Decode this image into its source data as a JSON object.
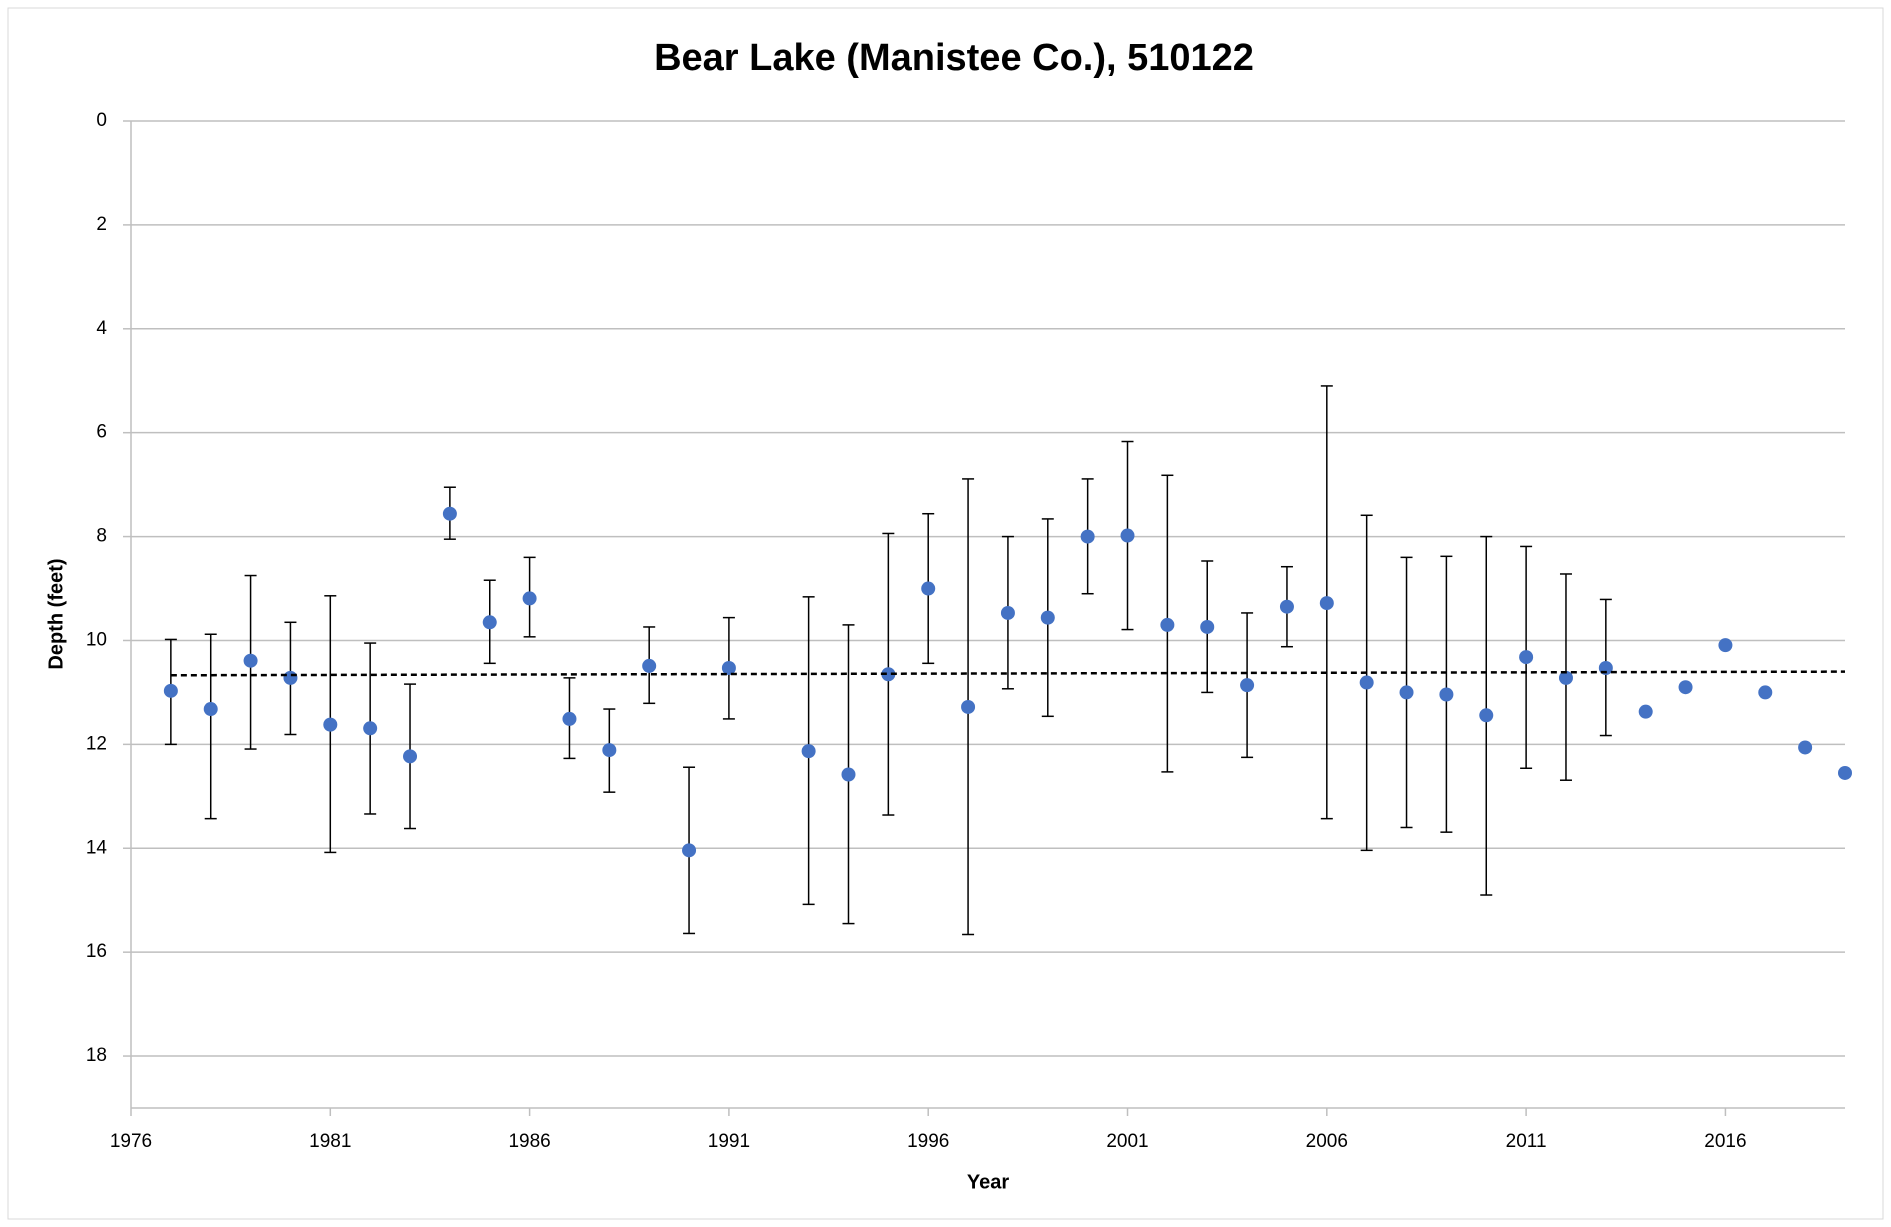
{
  "chart_data": {
    "type": "scatter",
    "title": "Bear Lake (Manistee Co.), 510122",
    "x_label": "Year",
    "y_label": "Depth (feet)",
    "xlim": [
      1976,
      2019
    ],
    "xticks": [
      1976,
      1981,
      1986,
      1991,
      1996,
      2001,
      2006,
      2011,
      2016
    ],
    "ylim": [
      0,
      19
    ],
    "yticks": [
      0,
      2,
      4,
      6,
      8,
      10,
      12,
      14,
      16,
      18
    ],
    "y_inverted": true,
    "grid": true,
    "series": [
      {
        "color": "#4472c4",
        "error_color": "#000000",
        "x": [
          1977,
          1978,
          1979,
          1980,
          1981,
          1982,
          1983,
          1984,
          1985,
          1986,
          1987,
          1988,
          1989,
          1990,
          1991,
          1993,
          1994,
          1995,
          1996,
          1997,
          1998,
          1999,
          2000,
          2001,
          2002,
          2003,
          2004,
          2005,
          2006,
          2007,
          2008,
          2009,
          2010,
          2011,
          2012,
          2013,
          2014,
          2015,
          2016,
          2017,
          2018,
          2019
        ],
        "values": [
          10.97,
          11.32,
          10.39,
          10.72,
          11.62,
          11.69,
          12.23,
          7.56,
          9.65,
          9.19,
          11.51,
          12.11,
          10.49,
          14.04,
          10.53,
          12.13,
          12.58,
          10.65,
          9.0,
          11.28,
          9.47,
          9.56,
          8.0,
          7.98,
          9.7,
          9.74,
          10.86,
          9.35,
          9.28,
          10.81,
          11.0,
          11.04,
          11.44,
          10.32,
          10.72,
          10.53,
          11.37,
          10.9,
          10.09,
          11.0,
          12.06,
          12.55
        ],
        "low": [
          9.98,
          9.88,
          8.75,
          9.65,
          9.14,
          10.05,
          10.84,
          7.05,
          8.84,
          8.4,
          10.72,
          11.32,
          9.74,
          12.44,
          9.56,
          9.16,
          9.7,
          7.94,
          7.56,
          6.89,
          8.0,
          7.66,
          6.89,
          6.17,
          6.82,
          8.47,
          9.47,
          8.58,
          5.1,
          7.59,
          8.4,
          8.38,
          8.0,
          8.19,
          8.72,
          9.21,
          null,
          null,
          null,
          null,
          null,
          null
        ],
        "high": [
          12.0,
          13.43,
          12.09,
          11.81,
          14.08,
          13.34,
          13.62,
          8.05,
          10.44,
          9.93,
          12.27,
          12.92,
          11.21,
          15.64,
          11.51,
          15.08,
          15.45,
          13.36,
          10.44,
          15.66,
          10.93,
          11.46,
          9.1,
          9.79,
          12.53,
          11.0,
          12.25,
          10.12,
          13.43,
          14.04,
          13.6,
          13.69,
          14.9,
          12.46,
          12.69,
          11.83,
          null,
          null,
          null,
          null,
          null,
          null
        ]
      }
    ],
    "trendline": {
      "x": [
        1977,
        2019
      ],
      "values": [
        10.67,
        10.6
      ],
      "color": "#000000",
      "style": "dashed"
    }
  }
}
